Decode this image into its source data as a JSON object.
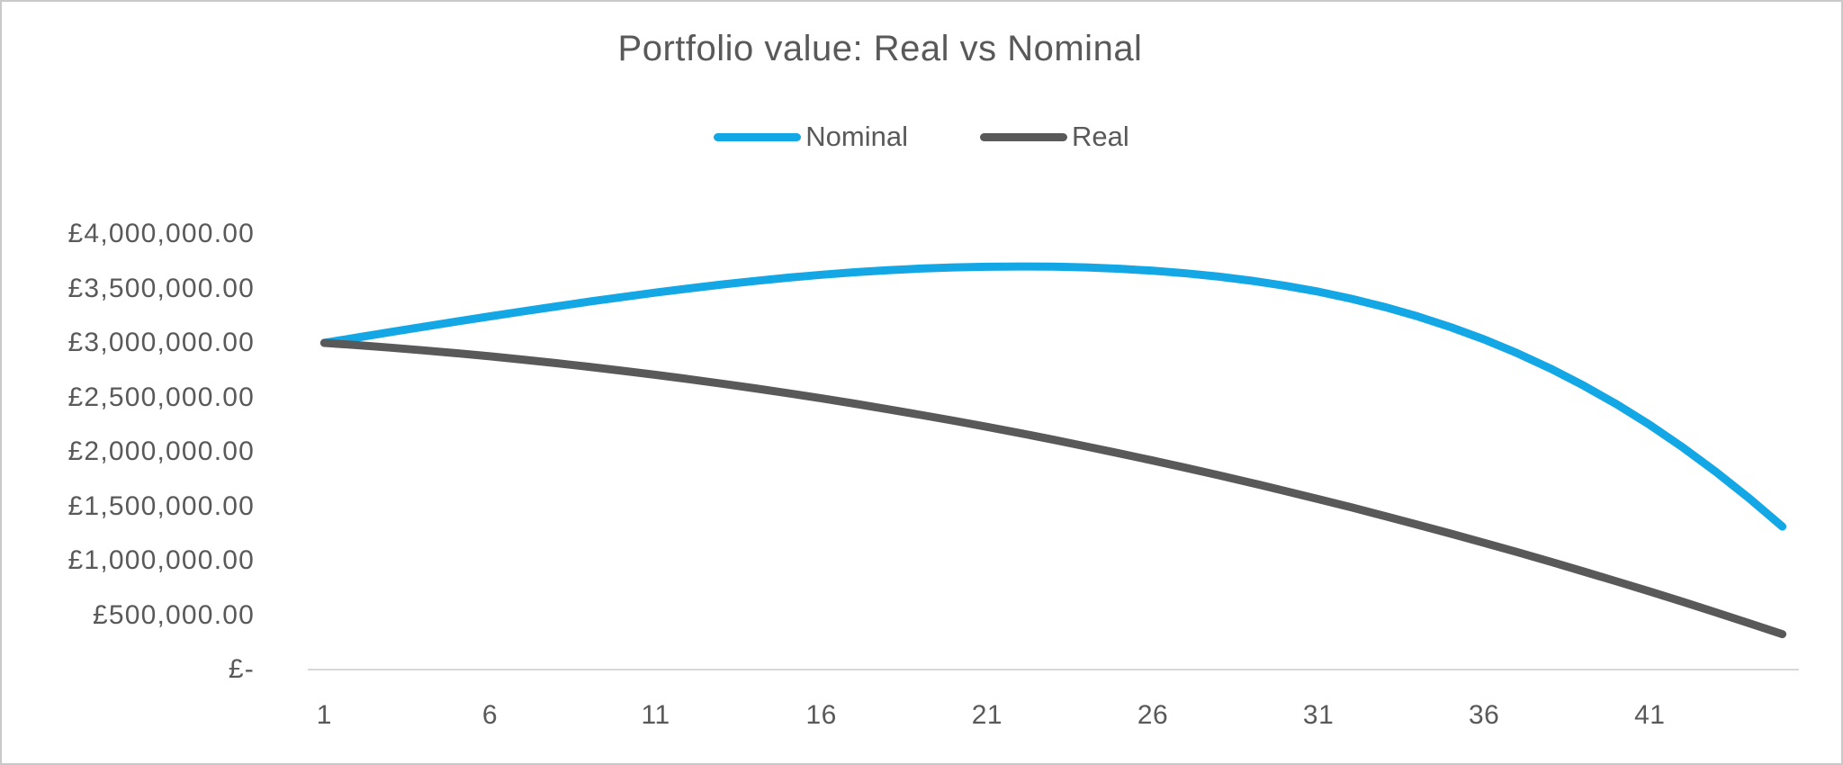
{
  "chart_data": {
    "type": "line",
    "title": "Portfolio value: Real vs Nominal",
    "xlabel": "",
    "ylabel": "",
    "ylim": [
      0,
      4000000
    ],
    "y_tick_interval": 500000,
    "grid": false,
    "legend_position": "top-center",
    "x_values": [
      1,
      2,
      3,
      4,
      5,
      6,
      7,
      8,
      9,
      10,
      11,
      12,
      13,
      14,
      15,
      16,
      17,
      18,
      19,
      20,
      21,
      22,
      23,
      24,
      25,
      26,
      27,
      28,
      29,
      30,
      31,
      32,
      33,
      34,
      35,
      36,
      37,
      38,
      39,
      40,
      41,
      42,
      43,
      44,
      45
    ],
    "series": [
      {
        "name": "Nominal",
        "color": "#14a7e5",
        "values": [
          3000000,
          3050000,
          3100000,
          3148000,
          3197000,
          3244000,
          3290000,
          3335000,
          3379000,
          3421000,
          3462000,
          3500000,
          3536000,
          3569000,
          3599000,
          3626000,
          3649000,
          3668000,
          3683000,
          3693000,
          3699000,
          3702000,
          3700000,
          3693000,
          3681000,
          3663000,
          3639000,
          3608000,
          3570000,
          3524000,
          3470000,
          3405000,
          3330000,
          3243000,
          3144000,
          3032000,
          2906000,
          2765000,
          2608000,
          2436000,
          2247000,
          2040000,
          1815000,
          1573000,
          1313000
        ]
      },
      {
        "name": "Real",
        "color": "#595959",
        "values": [
          3000000,
          2979000,
          2956000,
          2931000,
          2905000,
          2877000,
          2846000,
          2814000,
          2780000,
          2744000,
          2707000,
          2667000,
          2626000,
          2583000,
          2538000,
          2491000,
          2442000,
          2391000,
          2339000,
          2285000,
          2229000,
          2171000,
          2111000,
          2049000,
          1985000,
          1920000,
          1853000,
          1784000,
          1713000,
          1640000,
          1565000,
          1489000,
          1410000,
          1330000,
          1248000,
          1164000,
          1079000,
          991000,
          901000,
          810000,
          717000,
          622000,
          525000,
          426000,
          326000
        ]
      }
    ],
    "y_ticks": [
      {
        "label": "£4,000,000.00",
        "value": 4000000
      },
      {
        "label": "£3,500,000.00",
        "value": 3500000
      },
      {
        "label": "£3,000,000.00",
        "value": 3000000
      },
      {
        "label": "£2,500,000.00",
        "value": 2500000
      },
      {
        "label": "£2,000,000.00",
        "value": 2000000
      },
      {
        "label": "£1,500,000.00",
        "value": 1500000
      },
      {
        "label": "£1,000,000.00",
        "value": 1000000
      },
      {
        "label": "£500,000.00",
        "value": 500000
      },
      {
        "label": "£-",
        "value": 0
      }
    ],
    "x_ticks": [
      {
        "label": "1",
        "year": 1
      },
      {
        "label": "6",
        "year": 6
      },
      {
        "label": "11",
        "year": 11
      },
      {
        "label": "16",
        "year": 16
      },
      {
        "label": "21",
        "year": 21
      },
      {
        "label": "26",
        "year": 26
      },
      {
        "label": "31",
        "year": 31
      },
      {
        "label": "36",
        "year": 36
      },
      {
        "label": "41",
        "year": 41
      }
    ]
  },
  "colors": {
    "nominal_line": "#14a7e5",
    "real_line": "#595959",
    "text": "#595959",
    "axis_line": "#d9d9d9",
    "frame_border": "#c9c9c9",
    "background": "#ffffff"
  }
}
